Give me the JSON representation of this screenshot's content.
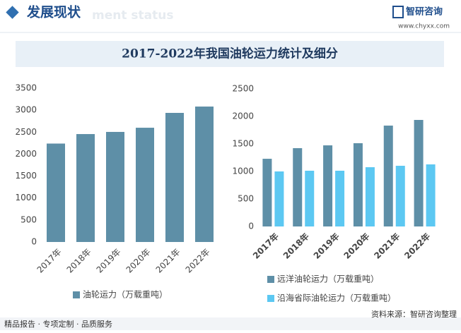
{
  "header": {
    "title": "发展现状",
    "watermark": "ment status",
    "logo": "智研咨询",
    "url": "www.chyxx.com",
    "banner": "2017-2022年我国油轮运力统计及细分"
  },
  "footer": {
    "left": "精品报告 · 专项定制 · 品质服务",
    "right": "资料来源：智研咨询整理"
  },
  "chart_data": [
    {
      "type": "bar",
      "categories": [
        "2017年",
        "2018年",
        "2019年",
        "2020年",
        "2021年",
        "2022年"
      ],
      "series": [
        {
          "name": "油轮运力（万载重吨）",
          "color": "#5e8fa7",
          "values": [
            2240,
            2456,
            2505,
            2600,
            2938,
            3082
          ]
        }
      ],
      "ylim": [
        0,
        3500
      ],
      "yticks": [
        0,
        500,
        1000,
        1500,
        2000,
        2500,
        3000,
        3500
      ]
    },
    {
      "type": "bar",
      "categories": [
        "2017年",
        "2018年",
        "2019年",
        "2020年",
        "2021年",
        "2022年"
      ],
      "series": [
        {
          "name": "远洋油轮运力（万载重吨）",
          "color": "#5e8fa7",
          "values": [
            1230,
            1423,
            1474,
            1513,
            1833,
            1936
          ]
        },
        {
          "name": "沿海省际油轮运力（万载重吨）",
          "color": "#5cc8f2",
          "values": [
            1000,
            1013,
            1013,
            1077,
            1103,
            1128
          ]
        }
      ],
      "ylim": [
        0,
        2500
      ],
      "yticks": [
        0,
        500,
        1000,
        1500,
        2000,
        2500
      ]
    }
  ]
}
